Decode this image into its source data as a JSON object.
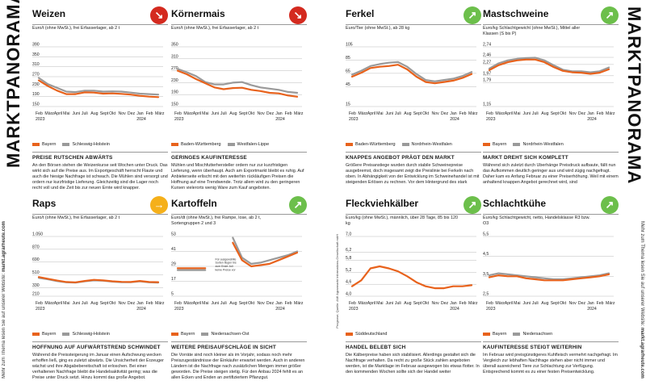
{
  "page": {
    "left_vertical_title": "MARKTPANORAMA",
    "right_vertical_title": "MARKTPANORAMA",
    "left_note_1": "Mehr zum Thema lesen Sie auf unserer Website:",
    "left_note_2": "markt.agrarheute.com",
    "right_note_1": "Mehr zum Thema lesen Sie auf unserer Website:",
    "right_note_2": "markt.agrarheute.com",
    "source_note": "Prognose; Quelle: AMI Agrarmarkt Informations-Gesellschaft mbH"
  },
  "colors": {
    "orange": "#e8621c",
    "gray": "#9a9a9a",
    "down": "#d42a1f",
    "up": "#f5b01a",
    "green": "#6cbf4b"
  },
  "x_labels": [
    "Feb\n2023",
    "März",
    "April",
    "Mai",
    "Juni",
    "Juli",
    "Aug",
    "Sept",
    "Okt",
    "Nov",
    "Dez",
    "Jan\n2024",
    "Feb",
    "März"
  ],
  "panels": [
    {
      "id": "weizen",
      "title": "Weizen",
      "trend": "down",
      "arrow_icon": "arrow-down-right-icon",
      "unit": "Euro/t (ohne MwSt.), frei Erfasserlager, ab 2 t",
      "legend": [
        "Bayern",
        "Schleswig-Holstein"
      ],
      "headline": "PREISE RUTSCHEN ABWÄRTS",
      "text": "An den Börsen stehen die Weizenkurse seit Wochen unter Druck. Das wirkt sich auf die Preise aus. Im Exportgeschäft herrscht Flaute und auch die hiesige Nachfrage ist schwach. Die Mühlen sind versorgt und ordern nur kurzfristige Lieferung. Gleichzeitig sind die Lager noch recht voll und die Zeit bis zur neuen Ernte wird knapper."
    },
    {
      "id": "koernermais",
      "title": "Körnermais",
      "trend": "down",
      "arrow_icon": "arrow-down-right-icon",
      "unit": "Euro/t (ohne MwSt.), frei Erfasserlager, ab 2 t",
      "legend": [
        "Baden-Württemberg",
        "Westfalen-Lippe"
      ],
      "headline": "GERINGES KAUFINTERESSE",
      "text": "Mühlen und Mischfutterhersteller ordern nur zur kurzfristigen Lieferung, wenn überhaupt. Auch am Exportmarkt bleibt es ruhig. Auf Anbieterseite erlischt mit den weiterhin rückläufigen Preisen die Hoffnung auf eine Trendwende. Trotz allem wird zu den geringeren Kursen vielerorts wenig Ware zum Kauf angeboten."
    },
    {
      "id": "raps",
      "title": "Raps",
      "trend": "flat",
      "arrow_icon": "arrow-right-icon",
      "unit": "Euro/t (ohne MwSt.), frei Erfasserlager, ab 2 t",
      "legend": [
        "Bayern",
        "Schleswig-Holstein"
      ],
      "headline": "HOFFNUNG AUF AUFWÄRTSTREND SCHWINDET",
      "text": "Während die Preissteigerung im Januar einen Aufschwung wecken erhoffen ließ, ging es zuletzt abwärts. Die Unsicherheit der Erzeuger wächst und ihre Abgabebereitschaft ist erloschen. Bei einer verhaltenen Nachfrage bleibt die Handelsaktivität gering; was die Preise unter Druck setzt. Hinzu kommt das große Angebot."
    },
    {
      "id": "kartoffeln",
      "title": "Kartoffeln",
      "trend": "up",
      "arrow_icon": "arrow-up-right-icon",
      "unit": "Euro/dt (ohne MwSt.), frei Rampe, lose, ab 2 t, Sortengruppen 2 und 3",
      "legend": [
        "Bayern",
        "Niedersachsen-Ost"
      ],
      "headline": "WEITERE PREISAUFSCHLÄGE IN SICHT",
      "text": "Die Vorräte sind noch kleiner als im Vorjahr, sodass noch mehr Preiszugeständnisse der Einkäufer erwartet werden. Auch in anderen Ländern ist die Nachfrage nach zusätzlichen Mengen immer größer geworden. Die Preise steigen stetig. Für den Anbau 2024 fehlt es an allen Ecken und Enden an zertifiziertem Pflanzgut.",
      "annotation": "Für ausgewählte Sorten liegen bis zum Ende Juli keine Preise vor"
    },
    {
      "id": "ferkel",
      "title": "Ferkel",
      "trend": "up",
      "arrow_icon": "arrow-up-right-icon",
      "unit": "Euro/Tier (ohne MwSt.), ab 28 kg",
      "legend": [
        "Baden-Württemberg",
        "Nordrhein-Westfalen"
      ],
      "headline": "KNAPPES ANGEBOT PRÄGT DEN MARKT",
      "text": "Größere Preisanstiege wurden durch stabile Schweinepreise ausgebremst, doch insgesamt zeigt die Preislinie bei Ferkeln nach oben. In Abhängigkeit von der Entwicklung im Schweinehandel ist mit steigenden Erlösen zu rechnen. Vor dem Hintergrund des stark"
    },
    {
      "id": "mastschweine",
      "title": "Mastschweine",
      "trend": "up",
      "arrow_icon": "arrow-up-right-icon",
      "unit": "Euro/kg Schlachtgewicht (ohne MwSt.), Mittel aller Klassen (S bis P)",
      "legend": [
        "Bayern",
        "Nordrhein-Westfalen"
      ],
      "headline": "MARKT DREHT SICH KOMPLETT",
      "text": "Während sich zuletzt durch Überhänge Preisdruck aufbaute, fällt nun das Aufkommen deutlich geringer aus und wird zügig nachgefragt. Daher kam es Anfang Februar zu einer Preiserhöhung. Weil mit einem anhaltend knappen Angebot gerechnet wird, sind"
    },
    {
      "id": "fleckviehkaelber",
      "title": "Fleckviehkälber",
      "trend": "up",
      "arrow_icon": "arrow-up-right-icon",
      "unit": "Euro/kg (ohne MwSt.), männlich, über 28 Tage, 85 bis 120 kg",
      "legend": [
        "Süddeutschland"
      ],
      "headline": "HANDEL BELEBT SICH",
      "text": "Die Kälberpreise haben sich stabilisiert. Allerdings gestaltet sich die Nachfrage verhalten. Da recht zu große Stück zahlen angeboten werden, ist die Marktlage im Februar ausgewogen bis etwas flotter. In den kommenden Wochen sollte sich der Handel weiter"
    },
    {
      "id": "schlachtkuehe",
      "title": "Schlachtkühe",
      "trend": "up",
      "arrow_icon": "arrow-up-right-icon",
      "unit": "Euro/kg Schlachtgewicht, netto, Handelsklasse R3 bzw. O3",
      "legend": [
        "Bayern",
        "Niedersachsen"
      ],
      "headline": "KAUFINTERESSE STEIGT WEITERHIN",
      "text": "Im Februar wird preisgünstigeres Kuhfleisch vermehrt nachgefragt. Im Vergleich zur lebhaften Nachfrage stehen aber nicht immer und überall ausreichend Tiere zur Schlachtung zur Verfügung. Entsprechend kommt es zu einer festen Preisentwicklung."
    }
  ],
  "chart_data": [
    {
      "id": "weizen",
      "type": "line",
      "ylim": [
        150,
        390
      ],
      "y_ticks": [
        390,
        350,
        310,
        270,
        230,
        190,
        150
      ],
      "categories": [
        "Feb 2023",
        "März",
        "April",
        "Mai",
        "Juni",
        "Juli",
        "Aug",
        "Sept",
        "Okt",
        "Nov",
        "Dez",
        "Jan 2024",
        "Feb",
        "März"
      ],
      "series": [
        {
          "name": "Bayern",
          "values": [
            255,
            232,
            214,
            200,
            200,
            207,
            206,
            202,
            203,
            201,
            198,
            193,
            190,
            188
          ]
        },
        {
          "name": "Schleswig-Holstein",
          "values": [
            265,
            240,
            225,
            210,
            208,
            214,
            214,
            210,
            211,
            210,
            206,
            202,
            200,
            198
          ]
        }
      ]
    },
    {
      "id": "koernermais",
      "type": "line",
      "ylim": [
        150,
        350
      ],
      "y_ticks": [
        350,
        310,
        270,
        230,
        190,
        150
      ],
      "categories": [
        "Feb 2023",
        "März",
        "April",
        "Mai",
        "Juni",
        "Juli",
        "Aug",
        "Sept",
        "Okt",
        "Nov",
        "Dez",
        "Jan 2024",
        "Feb",
        "März"
      ],
      "series": [
        {
          "name": "Baden-Württemberg",
          "values": [
            270,
            258,
            242,
            228,
            214,
            208,
            212,
            213,
            206,
            202,
            196,
            194,
            187,
            183
          ]
        },
        {
          "name": "Westfalen-Lippe",
          "values": [
            276,
            265,
            252,
            232,
            224,
            224,
            230,
            232,
            222,
            214,
            210,
            206,
            199,
            196
          ]
        }
      ]
    },
    {
      "id": "raps",
      "type": "line",
      "ylim": [
        210,
        1050
      ],
      "y_ticks": [
        1050,
        870,
        690,
        510,
        330,
        210
      ],
      "y_tick_labels": [
        "1.050",
        "870",
        "690",
        "510",
        "330",
        "210"
      ],
      "categories": [
        "Feb 2023",
        "März",
        "April",
        "Mai",
        "Juni",
        "Juli",
        "Aug",
        "Sept",
        "Okt",
        "Nov",
        "Dez",
        "Jan 2024",
        "Feb",
        "März"
      ],
      "series": [
        {
          "name": "Bayern",
          "values": [
            480,
            455,
            430,
            410,
            405,
            425,
            440,
            432,
            420,
            412,
            410,
            425,
            410,
            408
          ]
        },
        {
          "name": "Schleswig-Holstein",
          "values": [
            468,
            448,
            422,
            405,
            402,
            420,
            432,
            428,
            416,
            408,
            406,
            420,
            405,
            402
          ]
        }
      ]
    },
    {
      "id": "kartoffeln",
      "type": "line",
      "ylim": [
        5,
        53
      ],
      "y_ticks": [
        53,
        41,
        29,
        17,
        5
      ],
      "categories": [
        "Feb 2023",
        "März",
        "April",
        "Mai",
        "Juni",
        "Juli",
        "Aug",
        "Sept",
        "Okt",
        "Nov",
        "Dez",
        "Jan 2024",
        "Feb",
        "März"
      ],
      "series": [
        {
          "name": "Bayern",
          "values": [
            27.5,
            27.5,
            27.5,
            27.5,
            null,
            null,
            48,
            34,
            29,
            30,
            31,
            34,
            37,
            40
          ]
        },
        {
          "name": "Niedersachsen-Ost",
          "values": [
            26,
            26,
            26,
            26,
            null,
            null,
            52,
            36,
            31,
            32,
            34,
            36,
            38,
            41
          ]
        }
      ]
    },
    {
      "id": "ferkel",
      "type": "line",
      "ylim": [
        15,
        105
      ],
      "y_ticks": [
        105,
        85,
        65,
        45,
        15
      ],
      "categories": [
        "Feb 2023",
        "März",
        "April",
        "Mai",
        "Juni",
        "Juli",
        "Aug",
        "Sept",
        "Okt",
        "Nov",
        "Dez",
        "Jan 2024",
        "Feb",
        "März"
      ],
      "series": [
        {
          "name": "Baden-Württemberg",
          "values": [
            60,
            66,
            73,
            75,
            76,
            78,
            71,
            60,
            52,
            50,
            52,
            54,
            58,
            64
          ]
        },
        {
          "name": "Nordrhein-Westfalen",
          "values": [
            63,
            69,
            76,
            79,
            81,
            82,
            75,
            64,
            55,
            53,
            55,
            57,
            61,
            67
          ]
        }
      ]
    },
    {
      "id": "mastschweine",
      "type": "line",
      "ylim": [
        1.15,
        2.74
      ],
      "y_ticks": [
        2.74,
        2.46,
        2.27,
        1.97,
        1.79,
        1.15
      ],
      "y_tick_labels": [
        "2,74",
        "2,46",
        "2,27",
        "1,97",
        "1,79",
        "1,15"
      ],
      "categories": [
        "Feb 2023",
        "März",
        "April",
        "Mai",
        "Juni",
        "Juli",
        "Aug",
        "Sept",
        "Okt",
        "Nov",
        "Dez",
        "Jan 2024",
        "Feb",
        "März"
      ],
      "series": [
        {
          "name": "Bayern",
          "values": [
            2.12,
            2.25,
            2.33,
            2.38,
            2.4,
            2.4,
            2.33,
            2.2,
            2.1,
            2.06,
            2.05,
            2.02,
            2.05,
            2.14
          ]
        },
        {
          "name": "Nordrhein-Westfalen",
          "values": [
            2.16,
            2.3,
            2.38,
            2.42,
            2.44,
            2.45,
            2.38,
            2.25,
            2.13,
            2.09,
            2.09,
            2.06,
            2.09,
            2.19
          ]
        }
      ]
    },
    {
      "id": "fleckviehkaelber",
      "type": "line",
      "ylim": [
        4.0,
        7.0
      ],
      "y_ticks": [
        7.0,
        6.2,
        5.8,
        5.2,
        4.6,
        4.0
      ],
      "y_tick_labels": [
        "7,0",
        "6,2",
        "5,8",
        "5,2",
        "4,6",
        "4,0"
      ],
      "categories": [
        "Feb 2023",
        "März",
        "April",
        "Mai",
        "Juni",
        "Juli",
        "Aug",
        "Sept",
        "Okt",
        "Nov",
        "Dez",
        "Jan 2024",
        "Feb",
        "März"
      ],
      "series": [
        {
          "name": "Süddeutschland",
          "values": [
            4.5,
            4.8,
            5.4,
            5.5,
            5.4,
            5.25,
            5.0,
            4.7,
            4.5,
            4.4,
            4.4,
            4.5,
            4.5,
            4.55
          ]
        }
      ]
    },
    {
      "id": "schlachtkuehe",
      "type": "line",
      "ylim": [
        2.5,
        5.5
      ],
      "y_ticks": [
        5.5,
        4.5,
        3.5,
        2.5
      ],
      "y_tick_labels": [
        "5,5",
        "4,5",
        "3,5",
        "2,5"
      ],
      "categories": [
        "Feb 2023",
        "März",
        "April",
        "Mai",
        "Juni",
        "Juli",
        "Aug",
        "Sept",
        "Okt",
        "Nov",
        "Dez",
        "Jan 2024",
        "Feb",
        "März"
      ],
      "series": [
        {
          "name": "Bayern",
          "values": [
            3.45,
            3.55,
            3.5,
            3.5,
            3.4,
            3.35,
            3.3,
            3.3,
            3.3,
            3.35,
            3.4,
            3.45,
            3.5,
            3.6
          ]
        },
        {
          "name": "Niedersachsen",
          "values": [
            3.55,
            3.65,
            3.6,
            3.55,
            3.5,
            3.45,
            3.4,
            3.35,
            3.35,
            3.4,
            3.45,
            3.5,
            3.55,
            3.65
          ]
        }
      ]
    }
  ]
}
